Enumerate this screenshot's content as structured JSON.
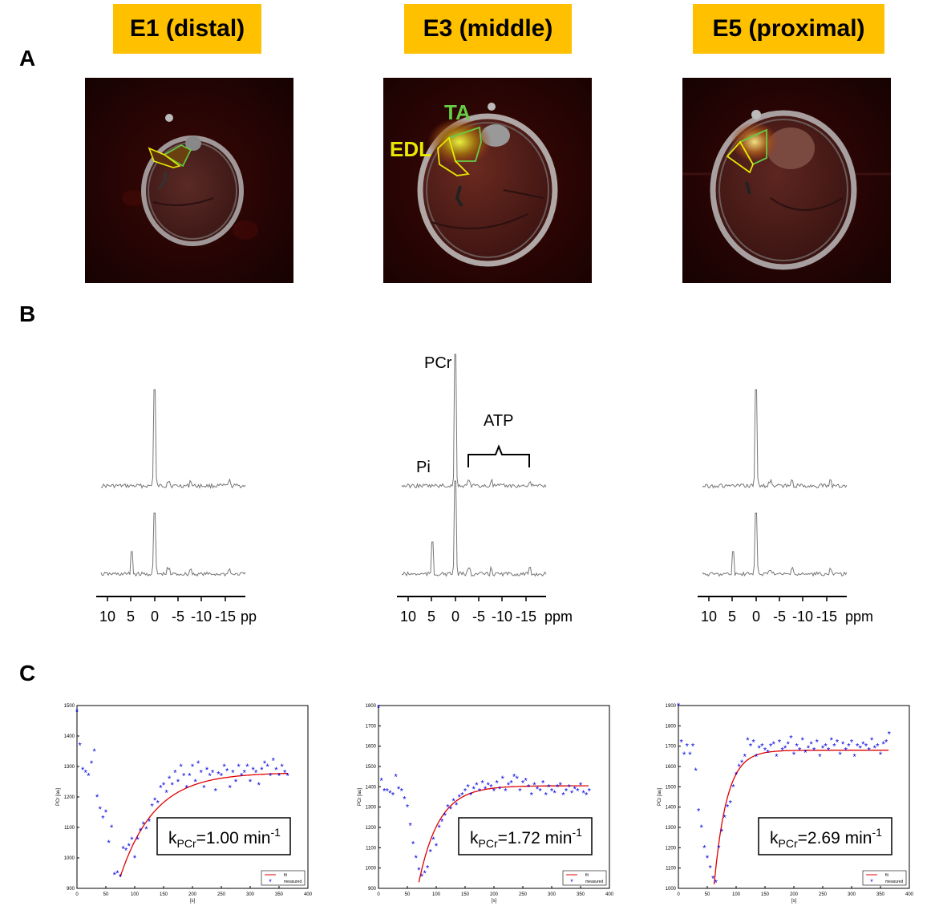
{
  "panels": {
    "a": "A",
    "b": "B",
    "c": "C"
  },
  "columns": [
    {
      "title": "E1 (distal)",
      "kpcr": {
        "k": "k",
        "sub": "PCr",
        "value": "=1.00 min",
        "sup": "-1"
      }
    },
    {
      "title": "E3 (middle)",
      "kpcr": {
        "k": "k",
        "sub": "PCr",
        "value": "=1.72 min",
        "sup": "-1"
      }
    },
    {
      "title": "E5 (proximal)",
      "kpcr": {
        "k": "k",
        "sub": "PCr",
        "value": "=2.69 min",
        "sup": "-1"
      }
    }
  ],
  "mri_labels": {
    "ta": "TA",
    "edl": "EDL"
  },
  "spectra": {
    "peak_labels": {
      "pcr": "PCr",
      "pi": "Pi",
      "atp": "ATP"
    },
    "axis_ticks": [
      "10",
      "5",
      "0",
      "-5",
      "-10",
      "-15"
    ],
    "axis_unit": "ppm"
  },
  "colors": {
    "title_bg": "#ffc000",
    "ta": "#66cc44",
    "edl": "#e8e800",
    "fit": "#e00000",
    "measured": "#0000e0"
  },
  "chart_data": [
    {
      "type": "scatter",
      "title": "",
      "xlabel": "[s]",
      "ylabel": "PCr [au]",
      "xlim": [
        0,
        400
      ],
      "ylim": [
        900,
        1500
      ],
      "x_ticks": [
        "0",
        "50",
        "100",
        "150",
        "200",
        "250",
        "300",
        "350",
        "400"
      ],
      "y_ticks": [
        "900",
        "1000",
        "1100",
        "1200",
        "1300",
        "1400",
        "1500"
      ],
      "legend": [
        "fit",
        "measured"
      ],
      "legend_position": "bottom-right",
      "series": [
        {
          "name": "measured",
          "points": [
            [
              0,
              1480
            ],
            [
              5,
              1370
            ],
            [
              10,
              1290
            ],
            [
              15,
              1280
            ],
            [
              20,
              1270
            ],
            [
              25,
              1310
            ],
            [
              30,
              1350
            ],
            [
              35,
              1200
            ],
            [
              40,
              1160
            ],
            [
              45,
              1130
            ],
            [
              50,
              1150
            ],
            [
              55,
              1050
            ],
            [
              60,
              1100
            ],
            [
              65,
              945
            ],
            [
              70,
              950
            ],
            [
              75,
              938
            ],
            [
              80,
              1030
            ],
            [
              85,
              1025
            ],
            [
              90,
              1040
            ],
            [
              95,
              1060
            ],
            [
              100,
              1000
            ],
            [
              105,
              1060
            ],
            [
              110,
              1090
            ],
            [
              115,
              1110
            ],
            [
              120,
              1095
            ],
            [
              125,
              1120
            ],
            [
              130,
              1170
            ],
            [
              135,
              1190
            ],
            [
              140,
              1180
            ],
            [
              145,
              1230
            ],
            [
              150,
              1240
            ],
            [
              155,
              1215
            ],
            [
              160,
              1260
            ],
            [
              165,
              1240
            ],
            [
              170,
              1280
            ],
            [
              175,
              1250
            ],
            [
              180,
              1300
            ],
            [
              185,
              1270
            ],
            [
              190,
              1230
            ],
            [
              195,
              1270
            ],
            [
              200,
              1300
            ],
            [
              205,
              1250
            ],
            [
              210,
              1310
            ],
            [
              215,
              1280
            ],
            [
              220,
              1230
            ],
            [
              225,
              1290
            ],
            [
              230,
              1270
            ],
            [
              235,
              1280
            ],
            [
              240,
              1220
            ],
            [
              245,
              1275
            ],
            [
              250,
              1270
            ],
            [
              255,
              1300
            ],
            [
              260,
              1285
            ],
            [
              265,
              1230
            ],
            [
              270,
              1280
            ],
            [
              275,
              1250
            ],
            [
              280,
              1300
            ],
            [
              285,
              1270
            ],
            [
              290,
              1280
            ],
            [
              295,
              1300
            ],
            [
              300,
              1250
            ],
            [
              305,
              1290
            ],
            [
              310,
              1280
            ],
            [
              315,
              1240
            ],
            [
              320,
              1290
            ],
            [
              325,
              1310
            ],
            [
              330,
              1300
            ],
            [
              335,
              1270
            ],
            [
              340,
              1320
            ],
            [
              345,
              1290
            ],
            [
              350,
              1270
            ],
            [
              355,
              1300
            ],
            [
              360,
              1280
            ],
            [
              365,
              1270
            ]
          ]
        },
        {
          "name": "fit",
          "model": "exponential_recovery",
          "x_start": 75,
          "x_end": 365,
          "y0": 938,
          "y_end": 1280,
          "tau_s": 60
        }
      ]
    },
    {
      "type": "scatter",
      "title": "",
      "xlabel": "[s]",
      "ylabel": "PCr [au]",
      "xlim": [
        0,
        400
      ],
      "ylim": [
        900,
        1800
      ],
      "x_ticks": [
        "0",
        "50",
        "100",
        "150",
        "200",
        "250",
        "300",
        "350",
        "400"
      ],
      "y_ticks": [
        "900",
        "1000",
        "1100",
        "1200",
        "1300",
        "1400",
        "1500",
        "1600",
        "1700",
        "1800"
      ],
      "legend": [
        "fit",
        "measured"
      ],
      "legend_position": "bottom-right",
      "series": [
        {
          "name": "measured",
          "points": [
            [
              0,
              1790
            ],
            [
              5,
              1430
            ],
            [
              10,
              1380
            ],
            [
              15,
              1380
            ],
            [
              20,
              1370
            ],
            [
              25,
              1360
            ],
            [
              30,
              1450
            ],
            [
              35,
              1390
            ],
            [
              40,
              1380
            ],
            [
              45,
              1340
            ],
            [
              50,
              1300
            ],
            [
              55,
              1210
            ],
            [
              60,
              1120
            ],
            [
              65,
              1050
            ],
            [
              70,
              990
            ],
            [
              75,
              960
            ],
            [
              80,
              975
            ],
            [
              85,
              1000
            ],
            [
              90,
              1080
            ],
            [
              95,
              1140
            ],
            [
              100,
              1110
            ],
            [
              105,
              1200
            ],
            [
              110,
              1230
            ],
            [
              115,
              1260
            ],
            [
              120,
              1300
            ],
            [
              125,
              1290
            ],
            [
              130,
              1330
            ],
            [
              135,
              1310
            ],
            [
              140,
              1350
            ],
            [
              145,
              1360
            ],
            [
              150,
              1380
            ],
            [
              155,
              1400
            ],
            [
              160,
              1360
            ],
            [
              165,
              1390
            ],
            [
              170,
              1410
            ],
            [
              175,
              1380
            ],
            [
              180,
              1420
            ],
            [
              185,
              1390
            ],
            [
              190,
              1410
            ],
            [
              195,
              1400
            ],
            [
              200,
              1380
            ],
            [
              205,
              1420
            ],
            [
              210,
              1390
            ],
            [
              215,
              1440
            ],
            [
              220,
              1380
            ],
            [
              225,
              1410
            ],
            [
              230,
              1420
            ],
            [
              235,
              1450
            ],
            [
              240,
              1440
            ],
            [
              245,
              1380
            ],
            [
              250,
              1420
            ],
            [
              255,
              1430
            ],
            [
              260,
              1400
            ],
            [
              265,
              1360
            ],
            [
              270,
              1410
            ],
            [
              275,
              1390
            ],
            [
              280,
              1380
            ],
            [
              285,
              1420
            ],
            [
              290,
              1360
            ],
            [
              295,
              1400
            ],
            [
              300,
              1380
            ],
            [
              305,
              1370
            ],
            [
              310,
              1400
            ],
            [
              315,
              1410
            ],
            [
              320,
              1360
            ],
            [
              325,
              1380
            ],
            [
              330,
              1400
            ],
            [
              335,
              1370
            ],
            [
              340,
              1390
            ],
            [
              345,
              1380
            ],
            [
              350,
              1410
            ],
            [
              355,
              1370
            ],
            [
              360,
              1360
            ],
            [
              365,
              1380
            ]
          ]
        },
        {
          "name": "fit",
          "model": "exponential_recovery",
          "x_start": 70,
          "x_end": 365,
          "y0": 930,
          "y_end": 1405,
          "tau_s": 35
        }
      ]
    },
    {
      "type": "scatter",
      "title": "",
      "xlabel": "[s]",
      "ylabel": "PCr [au]",
      "xlim": [
        0,
        400
      ],
      "ylim": [
        1000,
        1900
      ],
      "x_ticks": [
        "0",
        "50",
        "100",
        "150",
        "200",
        "250",
        "300",
        "350",
        "400"
      ],
      "y_ticks": [
        "1000",
        "1100",
        "1200",
        "1300",
        "1400",
        "1500",
        "1600",
        "1700",
        "1800",
        "1900"
      ],
      "legend": [
        "fit",
        "measured"
      ],
      "legend_position": "bottom-right",
      "series": [
        {
          "name": "measured",
          "points": [
            [
              0,
              1900
            ],
            [
              5,
              1720
            ],
            [
              10,
              1660
            ],
            [
              15,
              1700
            ],
            [
              20,
              1660
            ],
            [
              25,
              1700
            ],
            [
              30,
              1580
            ],
            [
              35,
              1380
            ],
            [
              40,
              1300
            ],
            [
              45,
              1200
            ],
            [
              50,
              1150
            ],
            [
              55,
              1100
            ],
            [
              60,
              1050
            ],
            [
              65,
              1030
            ],
            [
              70,
              1200
            ],
            [
              75,
              1280
            ],
            [
              80,
              1350
            ],
            [
              85,
              1400
            ],
            [
              90,
              1420
            ],
            [
              95,
              1500
            ],
            [
              100,
              1560
            ],
            [
              105,
              1600
            ],
            [
              110,
              1620
            ],
            [
              115,
              1650
            ],
            [
              120,
              1730
            ],
            [
              125,
              1700
            ],
            [
              130,
              1720
            ],
            [
              135,
              1650
            ],
            [
              140,
              1690
            ],
            [
              145,
              1700
            ],
            [
              150,
              1680
            ],
            [
              155,
              1670
            ],
            [
              160,
              1700
            ],
            [
              165,
              1710
            ],
            [
              170,
              1650
            ],
            [
              175,
              1720
            ],
            [
              180,
              1680
            ],
            [
              185,
              1690
            ],
            [
              190,
              1710
            ],
            [
              195,
              1740
            ],
            [
              200,
              1660
            ],
            [
              205,
              1700
            ],
            [
              210,
              1680
            ],
            [
              215,
              1730
            ],
            [
              220,
              1670
            ],
            [
              225,
              1690
            ],
            [
              230,
              1710
            ],
            [
              235,
              1680
            ],
            [
              240,
              1720
            ],
            [
              245,
              1650
            ],
            [
              250,
              1690
            ],
            [
              255,
              1700
            ],
            [
              260,
              1680
            ],
            [
              265,
              1730
            ],
            [
              270,
              1700
            ],
            [
              275,
              1720
            ],
            [
              280,
              1660
            ],
            [
              285,
              1710
            ],
            [
              290,
              1680
            ],
            [
              295,
              1700
            ],
            [
              300,
              1720
            ],
            [
              305,
              1650
            ],
            [
              310,
              1700
            ],
            [
              315,
              1690
            ],
            [
              320,
              1710
            ],
            [
              325,
              1700
            ],
            [
              330,
              1680
            ],
            [
              335,
              1730
            ],
            [
              340,
              1690
            ],
            [
              345,
              1700
            ],
            [
              350,
              1660
            ],
            [
              355,
              1710
            ],
            [
              360,
              1720
            ],
            [
              365,
              1760
            ]
          ]
        },
        {
          "name": "fit",
          "model": "exponential_recovery",
          "x_start": 62,
          "x_end": 365,
          "y0": 1020,
          "y_end": 1680,
          "tau_s": 22
        }
      ]
    }
  ]
}
